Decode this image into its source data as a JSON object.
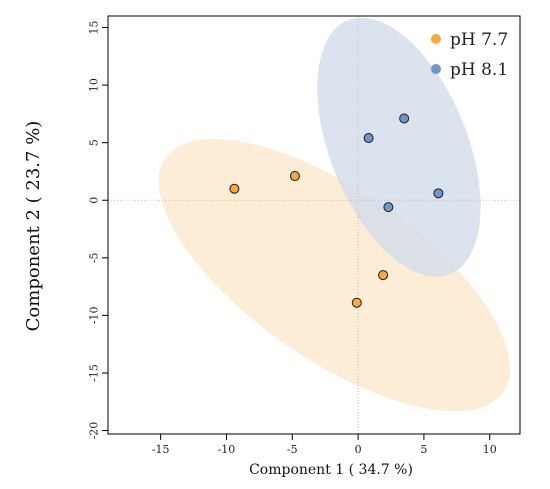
{
  "chart_data": {
    "type": "scatter",
    "xlabel": "Component 1 ( 34.7 %)",
    "ylabel": "Component 2 ( 23.7 %)",
    "xlim": [
      -19,
      12.3
    ],
    "ylim": [
      -20.3,
      16
    ],
    "x_ticks": [
      -15,
      -10,
      -5,
      0,
      5,
      10
    ],
    "y_ticks": [
      -20,
      -15,
      -10,
      -5,
      0,
      5,
      10,
      15
    ],
    "reference_lines": {
      "x": 0,
      "y": 0,
      "style": "dotted"
    },
    "legend_position": "top-right",
    "series": [
      {
        "name": "pH 7.7",
        "color": "#F5A93E",
        "ellipse_color": "#FDE9CC",
        "points": [
          [
            -9.4,
            1.0
          ],
          [
            -4.8,
            2.1
          ],
          [
            1.9,
            -6.5
          ],
          [
            -0.1,
            -8.9
          ]
        ],
        "ellipse": {
          "center": [
            -1.8,
            -6.5
          ],
          "semi_major": 16.4,
          "semi_minor": 7.0,
          "angle_deg": -40
        }
      },
      {
        "name": "pH 8.1",
        "color": "#6E98CC",
        "ellipse_color": "#D2DCEB",
        "points": [
          [
            3.5,
            7.1
          ],
          [
            0.8,
            5.4
          ],
          [
            6.1,
            0.6
          ],
          [
            2.3,
            -0.6
          ]
        ],
        "ellipse": {
          "center": [
            3.1,
            4.6
          ],
          "semi_major": 11.7,
          "semi_minor": 5.3,
          "angle_deg": -72
        }
      }
    ]
  }
}
